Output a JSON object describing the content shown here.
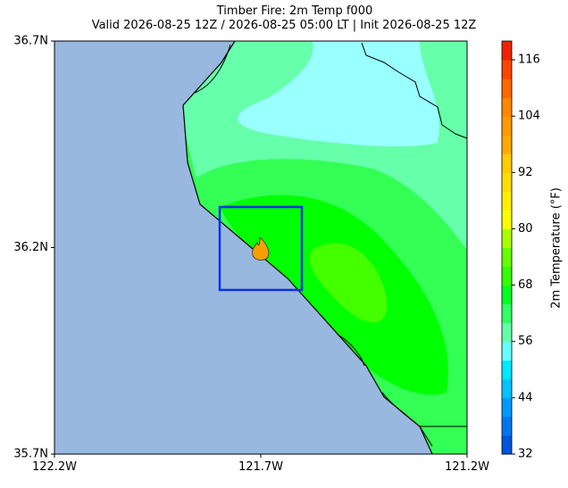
{
  "chart_data": {
    "type": "map",
    "title": "Timber Fire: 2m Temp f000",
    "subtitle": "Valid 2026-08-25 12Z / 2026-08-25 05:00 LT | Init 2026-08-25 12Z",
    "xlim": [
      -122.2,
      -121.2
    ],
    "ylim": [
      35.7,
      36.7
    ],
    "xticks": [
      {
        "value": -122.2,
        "label": "122.2W"
      },
      {
        "value": -121.7,
        "label": "121.7W"
      },
      {
        "value": -121.2,
        "label": "121.2W"
      }
    ],
    "yticks": [
      {
        "value": 35.7,
        "label": "35.7N"
      },
      {
        "value": 36.2,
        "label": "36.2N"
      },
      {
        "value": 36.7,
        "label": "36.7N"
      }
    ],
    "colorbar": {
      "label": "2m Temperature (°F)",
      "lim": [
        32,
        120
      ],
      "ticks": [
        32,
        44,
        56,
        68,
        80,
        92,
        104,
        116
      ],
      "colors": [
        "#0055dd",
        "#0077ee",
        "#0099ff",
        "#00c4ff",
        "#00e8ff",
        "#66ffff",
        "#66ffaa",
        "#33ff66",
        "#00ff22",
        "#33ff00",
        "#66ff00",
        "#aaff00",
        "#ffff00",
        "#ffee00",
        "#ffdd00",
        "#ffcc00",
        "#ffaa00",
        "#ff9900",
        "#ff8800",
        "#ff6600",
        "#ff4400",
        "#ee2200"
      ]
    }
  }
}
